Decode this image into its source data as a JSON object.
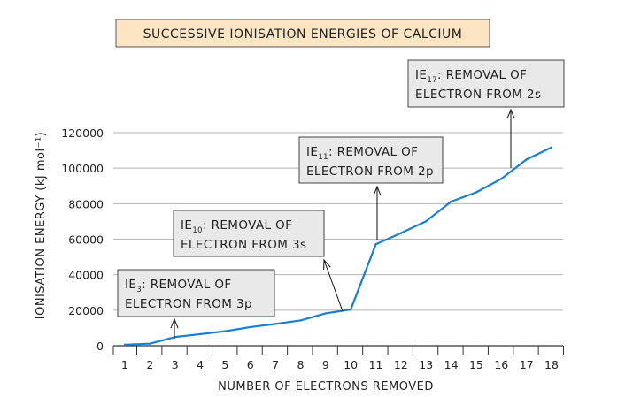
{
  "chart_data": {
    "type": "line",
    "title": "SUCCESSIVE IONISATION ENERGIES OF CALCIUM",
    "xlabel": "NUMBER OF ELECTRONS REMOVED",
    "ylabel": "IONISATION ENERGY (kJ mol⁻¹)",
    "x": [
      1,
      2,
      3,
      4,
      5,
      6,
      7,
      8,
      9,
      10,
      11,
      12,
      13,
      14,
      15,
      16,
      17,
      18
    ],
    "values": [
      590,
      1145,
      4912,
      6491,
      8153,
      10496,
      12270,
      14206,
      18191,
      20385,
      57110,
      63410,
      70110,
      81160,
      86400,
      94000,
      104900,
      111700
    ],
    "xticks": [
      "1",
      "2",
      "3",
      "4",
      "5",
      "6",
      "7",
      "8",
      "9",
      "10",
      "11",
      "12",
      "13",
      "14",
      "15",
      "16",
      "17",
      "18"
    ],
    "yticks": [
      "0",
      "20000",
      "40000",
      "60000",
      "80000",
      "100000",
      "120000"
    ],
    "ylim": [
      0,
      120000
    ],
    "grid": true,
    "colors": {
      "line": "#1a7fd4",
      "title_box": "#fde4c3",
      "callout_box": "#e9e9e9",
      "grid": "#b5b5b5"
    },
    "annotations": [
      {
        "prefix": "IE",
        "sub": "3",
        "line1": ": REMOVAL  OF",
        "line2": "ELECTRON  FROM  3p",
        "target_x": 3
      },
      {
        "prefix": "IE",
        "sub": "10",
        "line1": ": REMOVAL  OF",
        "line2": "ELECTRON  FROM  3s",
        "target_x": 10
      },
      {
        "prefix": "IE",
        "sub": "11",
        "line1": ": REMOVAL  OF",
        "line2": "ELECTRON  FROM  2p",
        "target_x": 11
      },
      {
        "prefix": "IE",
        "sub": "17",
        "line1": ": REMOVAL  OF",
        "line2": "ELECTRON  FROM  2s",
        "target_x": 16.5
      }
    ]
  }
}
